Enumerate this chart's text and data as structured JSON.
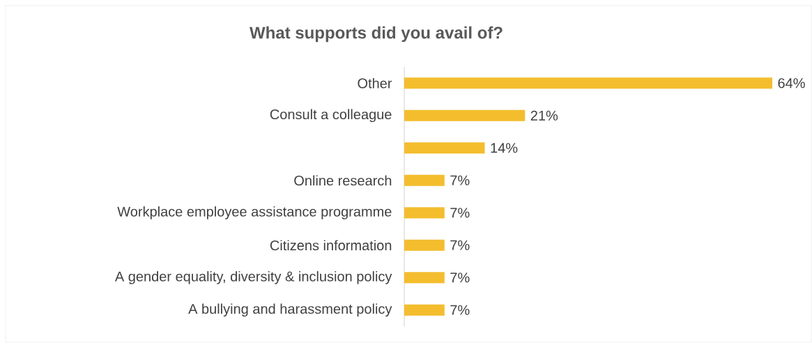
{
  "chart_data": {
    "type": "bar",
    "orientation": "horizontal",
    "title": "What supports did you avail of?",
    "categories": [
      "Other",
      "Consult a colleague",
      null,
      "Online research",
      "Workplace employee assistance programme",
      "Citizens information",
      "A gender equality, diversity & inclusion policy",
      "A bullying and harassment policy"
    ],
    "values": [
      64,
      21,
      14,
      7,
      7,
      7,
      7,
      7
    ],
    "value_labels": [
      "64%",
      "21%",
      "14%",
      "7%",
      "7%",
      "7%",
      "7%",
      "7%"
    ],
    "color": "#f3bd2e"
  }
}
